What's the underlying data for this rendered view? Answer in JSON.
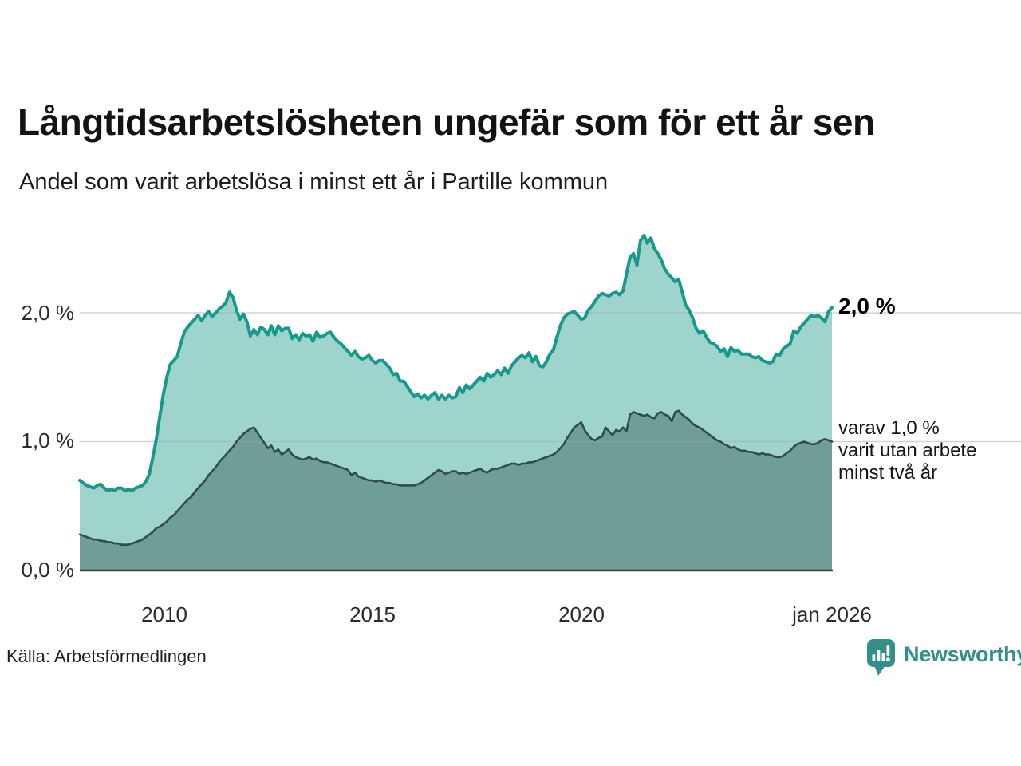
{
  "header": {
    "title": "Långtidsarbetslösheten ungefär som för ett år sen",
    "subtitle": "Andel som varit arbetslösa i minst ett år i Partille kommun"
  },
  "chart_data": {
    "type": "area",
    "title": "Långtidsarbetslösheten ungefär som för ett år sen",
    "subtitle": "Andel som varit arbetslösa i minst ett år i Partille kommun",
    "unit": "%",
    "x_start": "2008-01",
    "x_end": "2026-01",
    "step_months": 1,
    "xlim": [
      2008,
      2026
    ],
    "ylim": [
      0,
      2.7
    ],
    "grid": true,
    "y_ticks": [
      {
        "label": "2,0 %",
        "value": 2.0
      },
      {
        "label": "1,0 %",
        "value": 1.0
      },
      {
        "label": "0,0 %",
        "value": 0.0
      }
    ],
    "x_ticks": [
      {
        "label": "2010",
        "year": 2010
      },
      {
        "label": "2015",
        "year": 2015
      },
      {
        "label": "2020",
        "year": 2020
      },
      {
        "label": "jan 2026",
        "year": 2026
      }
    ],
    "series": [
      {
        "name": "Andel arbetslösa minst ett år",
        "line_color": "#17998b",
        "fill_color": "#9fd4cd",
        "line_width": 4,
        "values": [
          0.7,
          0.68,
          0.66,
          0.65,
          0.64,
          0.66,
          0.67,
          0.64,
          0.62,
          0.63,
          0.62,
          0.64,
          0.64,
          0.62,
          0.63,
          0.62,
          0.64,
          0.65,
          0.66,
          0.69,
          0.75,
          0.88,
          1.02,
          1.2,
          1.37,
          1.5,
          1.6,
          1.63,
          1.66,
          1.76,
          1.85,
          1.89,
          1.92,
          1.95,
          1.98,
          1.94,
          1.98,
          2.01,
          1.97,
          2.0,
          2.03,
          2.05,
          2.08,
          2.16,
          2.12,
          2.02,
          1.95,
          1.99,
          1.93,
          1.82,
          1.87,
          1.83,
          1.89,
          1.87,
          1.83,
          1.9,
          1.83,
          1.9,
          1.86,
          1.88,
          1.88,
          1.8,
          1.83,
          1.79,
          1.84,
          1.82,
          1.83,
          1.78,
          1.85,
          1.81,
          1.82,
          1.84,
          1.85,
          1.81,
          1.78,
          1.76,
          1.73,
          1.7,
          1.67,
          1.7,
          1.66,
          1.64,
          1.65,
          1.67,
          1.63,
          1.61,
          1.63,
          1.63,
          1.6,
          1.57,
          1.52,
          1.53,
          1.47,
          1.47,
          1.43,
          1.39,
          1.35,
          1.37,
          1.34,
          1.36,
          1.33,
          1.36,
          1.38,
          1.33,
          1.36,
          1.33,
          1.36,
          1.34,
          1.35,
          1.42,
          1.38,
          1.44,
          1.41,
          1.44,
          1.47,
          1.5,
          1.47,
          1.53,
          1.5,
          1.52,
          1.55,
          1.52,
          1.57,
          1.53,
          1.59,
          1.62,
          1.65,
          1.67,
          1.65,
          1.69,
          1.62,
          1.66,
          1.59,
          1.58,
          1.62,
          1.68,
          1.71,
          1.81,
          1.9,
          1.96,
          1.99,
          2.0,
          2.01,
          1.98,
          1.95,
          1.96,
          2.02,
          2.05,
          2.09,
          2.13,
          2.15,
          2.14,
          2.13,
          2.15,
          2.16,
          2.14,
          2.17,
          2.3,
          2.43,
          2.46,
          2.37,
          2.56,
          2.6,
          2.54,
          2.58,
          2.5,
          2.46,
          2.41,
          2.34,
          2.3,
          2.27,
          2.24,
          2.26,
          2.16,
          2.06,
          2.02,
          1.96,
          1.88,
          1.84,
          1.86,
          1.81,
          1.77,
          1.76,
          1.74,
          1.7,
          1.72,
          1.66,
          1.73,
          1.7,
          1.71,
          1.68,
          1.68,
          1.68,
          1.66,
          1.65,
          1.66,
          1.63,
          1.62,
          1.61,
          1.62,
          1.68,
          1.67,
          1.72,
          1.74,
          1.76,
          1.86,
          1.84,
          1.89,
          1.92,
          1.95,
          1.98,
          1.97,
          1.98,
          1.96,
          1.93,
          2.01,
          2.04
        ]
      },
      {
        "name": "varav utan arbete minst två år",
        "line_color": "#2f4e49",
        "fill_color": "#6f9d98",
        "line_width": 2.6,
        "values": [
          0.28,
          0.27,
          0.26,
          0.25,
          0.24,
          0.24,
          0.23,
          0.23,
          0.22,
          0.22,
          0.21,
          0.21,
          0.2,
          0.2,
          0.2,
          0.21,
          0.22,
          0.23,
          0.24,
          0.26,
          0.28,
          0.3,
          0.33,
          0.34,
          0.36,
          0.38,
          0.41,
          0.43,
          0.46,
          0.49,
          0.52,
          0.55,
          0.57,
          0.61,
          0.64,
          0.67,
          0.7,
          0.74,
          0.77,
          0.8,
          0.84,
          0.87,
          0.9,
          0.93,
          0.96,
          1.0,
          1.03,
          1.06,
          1.08,
          1.1,
          1.11,
          1.07,
          1.03,
          0.99,
          0.95,
          0.97,
          0.92,
          0.94,
          0.9,
          0.92,
          0.94,
          0.9,
          0.88,
          0.87,
          0.86,
          0.87,
          0.88,
          0.86,
          0.87,
          0.85,
          0.84,
          0.84,
          0.83,
          0.82,
          0.81,
          0.8,
          0.79,
          0.78,
          0.74,
          0.76,
          0.73,
          0.72,
          0.71,
          0.7,
          0.7,
          0.69,
          0.7,
          0.69,
          0.68,
          0.68,
          0.67,
          0.67,
          0.66,
          0.66,
          0.66,
          0.66,
          0.66,
          0.67,
          0.68,
          0.7,
          0.72,
          0.74,
          0.76,
          0.78,
          0.77,
          0.75,
          0.76,
          0.77,
          0.77,
          0.75,
          0.76,
          0.75,
          0.76,
          0.77,
          0.78,
          0.79,
          0.77,
          0.76,
          0.78,
          0.79,
          0.79,
          0.8,
          0.81,
          0.82,
          0.83,
          0.83,
          0.82,
          0.83,
          0.83,
          0.84,
          0.84,
          0.85,
          0.86,
          0.87,
          0.88,
          0.89,
          0.9,
          0.92,
          0.95,
          0.98,
          1.03,
          1.07,
          1.11,
          1.13,
          1.15,
          1.09,
          1.05,
          1.02,
          1.01,
          1.03,
          1.04,
          1.11,
          1.08,
          1.05,
          1.09,
          1.08,
          1.11,
          1.08,
          1.21,
          1.23,
          1.22,
          1.21,
          1.2,
          1.21,
          1.19,
          1.18,
          1.22,
          1.23,
          1.21,
          1.2,
          1.16,
          1.23,
          1.24,
          1.21,
          1.19,
          1.17,
          1.14,
          1.12,
          1.11,
          1.09,
          1.07,
          1.05,
          1.03,
          1.01,
          1.0,
          0.98,
          0.97,
          0.95,
          0.96,
          0.94,
          0.93,
          0.93,
          0.92,
          0.92,
          0.91,
          0.9,
          0.91,
          0.9,
          0.9,
          0.89,
          0.88,
          0.88,
          0.89,
          0.91,
          0.93,
          0.96,
          0.98,
          0.99,
          1.0,
          0.99,
          0.98,
          0.98,
          0.99,
          1.01,
          1.02,
          1.01,
          1.0
        ]
      }
    ],
    "annotations": {
      "total": {
        "label": "2,0 %",
        "value": 2.0
      },
      "two_years": {
        "value": 1.0,
        "lines": [
          "varav 1,0 %",
          "varit utan arbete",
          "minst två år"
        ]
      }
    },
    "legend_position": "right-annotations"
  },
  "footer": {
    "source": "Källa: Arbetsförmedlingen",
    "brand": "Newsworthy"
  },
  "colors": {
    "accent_teal": "#17998b",
    "fill_light": "#9fd4cd",
    "fill_dark": "#6f9d98",
    "dark_line": "#2f4e49",
    "axis_line": "#3c403f",
    "gridline": "rgba(160,172,172,0.5)",
    "brand_teal": "#348e89"
  },
  "layout_icons": {
    "brand_logo": "newsworthy-speech-bubble-barchart-icon"
  }
}
